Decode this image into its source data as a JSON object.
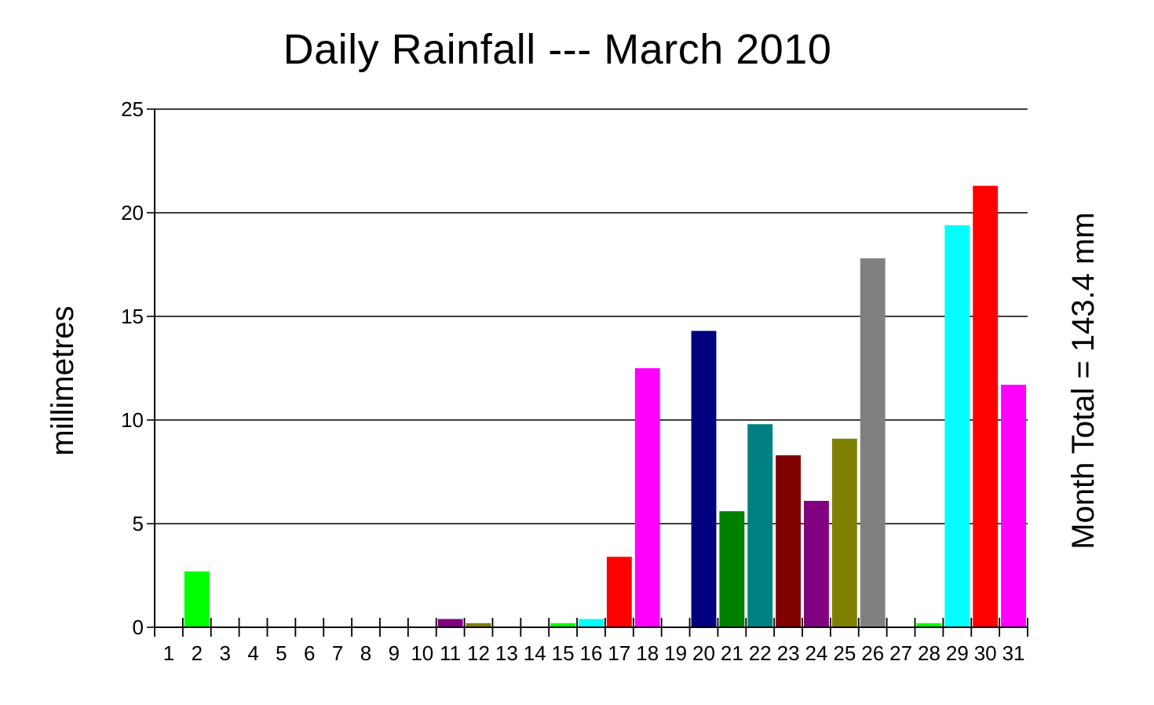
{
  "chart_data": {
    "type": "bar",
    "title": "Daily Rainfall --- March 2010",
    "ylabel": "millimetres",
    "xlabel": "",
    "side_label": "Month Total = 143.4 mm",
    "ylim": [
      0,
      25
    ],
    "yticks": [
      0,
      5,
      10,
      15,
      20,
      25
    ],
    "grid": true,
    "categories": [
      "1",
      "2",
      "3",
      "4",
      "5",
      "6",
      "7",
      "8",
      "9",
      "10",
      "11",
      "12",
      "13",
      "14",
      "15",
      "16",
      "17",
      "18",
      "19",
      "20",
      "21",
      "22",
      "23",
      "24",
      "25",
      "26",
      "27",
      "28",
      "29",
      "30",
      "31"
    ],
    "values": [
      0,
      2.7,
      0,
      0,
      0,
      0,
      0,
      0,
      0,
      0,
      0.4,
      0.2,
      0,
      0,
      0.2,
      0.4,
      3.4,
      12.5,
      0,
      14.3,
      5.6,
      9.8,
      8.3,
      6.1,
      9.1,
      17.8,
      0,
      0.2,
      19.4,
      21.3,
      11.7
    ],
    "colors": [
      "#00ff00",
      "#00ff00",
      "#00ff00",
      "#00ff00",
      "#00ff00",
      "#00ff00",
      "#00ff00",
      "#00ff00",
      "#00ff00",
      "#00ff00",
      "#800080",
      "#808000",
      "#808080",
      "#00ff00",
      "#00ff00",
      "#00ffff",
      "#ff0000",
      "#ff00ff",
      "#ff00ff",
      "#000080",
      "#008000",
      "#008080",
      "#800000",
      "#800080",
      "#808000",
      "#808080",
      "#808080",
      "#00ff00",
      "#00ffff",
      "#ff0000",
      "#ff00ff"
    ]
  }
}
